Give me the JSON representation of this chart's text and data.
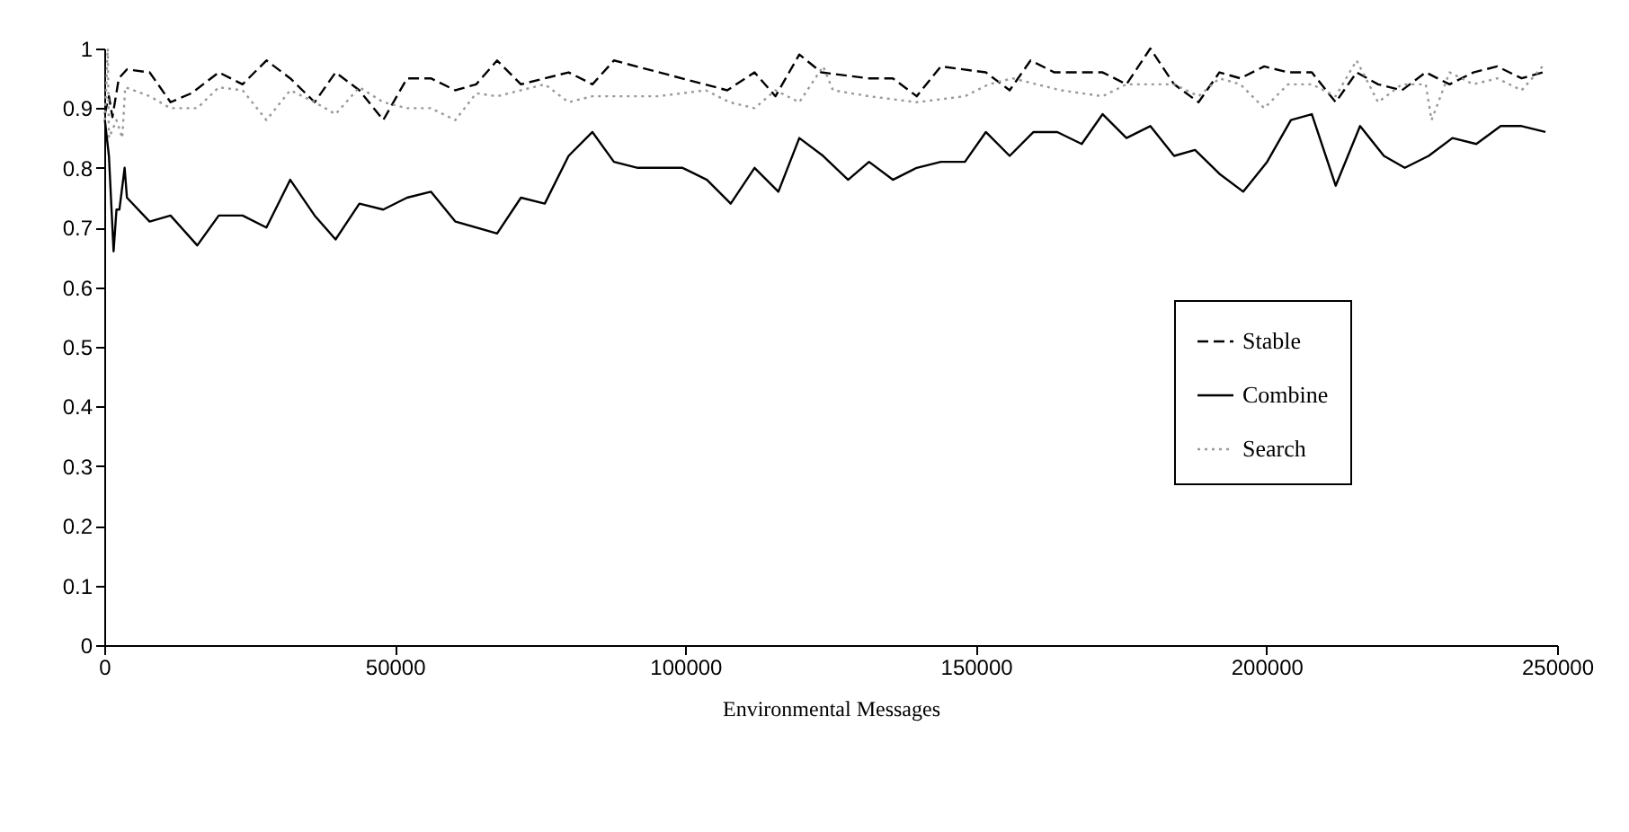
{
  "chart_data": {
    "type": "line",
    "xlabel": "Environmental Messages",
    "xlim": [
      0,
      250000
    ],
    "xticks": [
      0,
      50000,
      100000,
      150000,
      200000,
      250000
    ],
    "ylim": [
      0,
      1
    ],
    "yticks": [
      0,
      0.1,
      0.2,
      0.3,
      0.4,
      0.5,
      0.6,
      0.7,
      0.8,
      0.9,
      1
    ],
    "grid": false,
    "legend": "right",
    "marker": "none",
    "series": [
      {
        "name": "Stable",
        "color": "#000000",
        "line_style": "dashed",
        "x": [
          100,
          800,
          1400,
          2500,
          3900,
          7800,
          11400,
          15000,
          19700,
          23800,
          27900,
          32000,
          36200,
          39800,
          43900,
          48000,
          52100,
          56200,
          60400,
          64000,
          67600,
          71700,
          75800,
          79900,
          84000,
          87700,
          107200,
          111900,
          115500,
          119600,
          123400,
          131600,
          135700,
          139800,
          143960,
          151700,
          155800,
          159400,
          163500,
          171800,
          175900,
          180000,
          184100,
          188300,
          191900,
          195500,
          199600,
          203700,
          207800,
          211900,
          215500,
          219200,
          223300,
          227400,
          231500,
          235600,
          239700,
          243900,
          247500
        ],
        "values": [
          0.89,
          0.92,
          0.885,
          0.95,
          0.965,
          0.96,
          0.91,
          0.925,
          0.96,
          0.94,
          0.98,
          0.95,
          0.91,
          0.96,
          0.93,
          0.88,
          0.95,
          0.95,
          0.93,
          0.94,
          0.98,
          0.94,
          0.95,
          0.96,
          0.94,
          0.98,
          0.93,
          0.96,
          0.92,
          0.99,
          0.96,
          0.95,
          0.95,
          0.92,
          0.97,
          0.96,
          0.93,
          0.98,
          0.96,
          0.96,
          0.94,
          1.0,
          0.94,
          0.91,
          0.96,
          0.95,
          0.97,
          0.96,
          0.96,
          0.91,
          0.96,
          0.94,
          0.93,
          0.96,
          0.94,
          0.96,
          0.97,
          0.95,
          0.96
        ]
      },
      {
        "name": "Combine",
        "color": "#000000",
        "line_style": "solid",
        "x": [
          100,
          800,
          1600,
          2100,
          2600,
          3500,
          3900,
          7800,
          11400,
          16000,
          19700,
          23800,
          27900,
          32000,
          36200,
          39800,
          43900,
          48000,
          52100,
          56200,
          60400,
          67600,
          71700,
          75800,
          79900,
          84000,
          87700,
          91800,
          99500,
          103700,
          107800,
          111900,
          116000,
          119600,
          123700,
          128000,
          131600,
          135700,
          139800,
          143960,
          148100,
          151700,
          155800,
          159900,
          164000,
          168200,
          171800,
          175900,
          180000,
          184100,
          187700,
          191900,
          196000,
          200100,
          204200,
          207800,
          211900,
          216100,
          220200,
          223800,
          227900,
          232000,
          236100,
          240300,
          243900,
          248000
        ],
        "values": [
          0.88,
          0.82,
          0.66,
          0.73,
          0.73,
          0.8,
          0.75,
          0.71,
          0.72,
          0.67,
          0.72,
          0.72,
          0.7,
          0.78,
          0.72,
          0.68,
          0.74,
          0.73,
          0.75,
          0.76,
          0.71,
          0.69,
          0.75,
          0.74,
          0.82,
          0.86,
          0.81,
          0.8,
          0.8,
          0.78,
          0.74,
          0.8,
          0.76,
          0.85,
          0.82,
          0.78,
          0.81,
          0.78,
          0.8,
          0.81,
          0.81,
          0.86,
          0.82,
          0.86,
          0.86,
          0.84,
          0.89,
          0.85,
          0.87,
          0.82,
          0.83,
          0.79,
          0.76,
          0.81,
          0.88,
          0.89,
          0.77,
          0.87,
          0.82,
          0.8,
          0.82,
          0.85,
          0.84,
          0.87,
          0.87,
          0.86
        ]
      },
      {
        "name": "Search",
        "color": "#999999",
        "line_style": "dotted",
        "x": [
          100,
          600,
          800,
          2100,
          3100,
          3600,
          7800,
          11400,
          16000,
          19700,
          23800,
          27900,
          32000,
          36200,
          39800,
          43900,
          48000,
          52100,
          56200,
          60400,
          64000,
          67600,
          71700,
          75800,
          79900,
          84000,
          95300,
          103500,
          107600,
          111900,
          115500,
          119600,
          123700,
          125400,
          131600,
          139800,
          148100,
          152200,
          156300,
          164600,
          171800,
          175900,
          184100,
          188300,
          191900,
          195500,
          199600,
          203700,
          207800,
          211900,
          215500,
          219200,
          223300,
          227400,
          228400,
          231500,
          235600,
          239700,
          243900,
          247500
        ],
        "values": [
          0.88,
          1.0,
          0.85,
          0.88,
          0.85,
          0.935,
          0.92,
          0.9,
          0.9,
          0.935,
          0.93,
          0.88,
          0.93,
          0.91,
          0.89,
          0.935,
          0.91,
          0.9,
          0.9,
          0.88,
          0.925,
          0.92,
          0.93,
          0.94,
          0.91,
          0.92,
          0.92,
          0.93,
          0.91,
          0.9,
          0.93,
          0.91,
          0.97,
          0.93,
          0.92,
          0.91,
          0.92,
          0.94,
          0.95,
          0.93,
          0.92,
          0.94,
          0.94,
          0.92,
          0.95,
          0.94,
          0.9,
          0.94,
          0.94,
          0.92,
          0.98,
          0.91,
          0.94,
          0.94,
          0.88,
          0.96,
          0.94,
          0.95,
          0.93,
          0.97
        ]
      }
    ]
  }
}
